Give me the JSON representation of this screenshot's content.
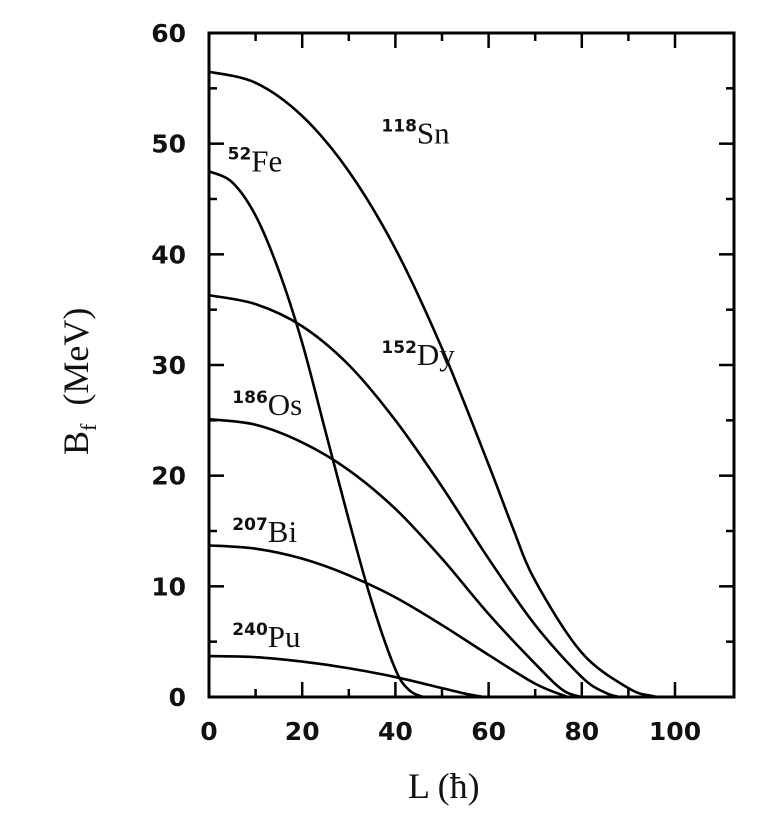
{
  "chart_data": {
    "type": "line",
    "title": "",
    "xlabel": "L (ħ)",
    "ylabel": "B_f (MeV)",
    "ylabel_main": "B",
    "ylabel_sub": "f",
    "ylabel_unit": "(MeV)",
    "xlim": [
      0,
      112
    ],
    "ylim": [
      0,
      60
    ],
    "xticks_major": [
      0,
      20,
      40,
      60,
      80,
      100
    ],
    "xticks_minor": [
      10,
      30,
      50,
      70,
      90
    ],
    "yticks_major": [
      0,
      10,
      20,
      30,
      40,
      50,
      60
    ],
    "yticks_minor": [
      5,
      15,
      25,
      35,
      45,
      55
    ],
    "xtick_labels": [
      "0",
      "20",
      "40",
      "60",
      "80",
      "100"
    ],
    "ytick_labels": [
      "0",
      "10",
      "20",
      "30",
      "40",
      "50",
      "60"
    ],
    "grid": false,
    "legend": "inline labels",
    "series": [
      {
        "name": "118Sn",
        "mass": "118",
        "element": "Sn",
        "x": [
          0,
          10,
          20,
          30,
          40,
          50,
          60,
          65,
          70,
          80,
          90,
          95,
          97
        ],
        "y": [
          56.5,
          55.5,
          52.5,
          47.5,
          40.5,
          31.5,
          21,
          15.5,
          10.5,
          4,
          0.8,
          0.1,
          0
        ]
      },
      {
        "name": "52Fe",
        "mass": "52",
        "element": "Fe",
        "x": [
          0,
          5,
          10,
          15,
          20,
          25,
          30,
          35,
          40,
          43,
          46
        ],
        "y": [
          47.5,
          46.5,
          43.5,
          38.5,
          32,
          24,
          16,
          8.5,
          2.5,
          0.6,
          0
        ]
      },
      {
        "name": "152Dy",
        "mass": "152",
        "element": "Dy",
        "x": [
          0,
          10,
          20,
          30,
          40,
          50,
          60,
          70,
          80,
          85,
          88
        ],
        "y": [
          36.3,
          35.5,
          33.5,
          30,
          25,
          19,
          12.5,
          6.5,
          1.8,
          0.4,
          0
        ]
      },
      {
        "name": "186Os",
        "mass": "186",
        "element": "Os",
        "x": [
          0,
          10,
          20,
          30,
          40,
          50,
          60,
          70,
          76,
          80
        ],
        "y": [
          25.1,
          24.6,
          23,
          20.5,
          17,
          12.5,
          7.5,
          3,
          0.6,
          0
        ]
      },
      {
        "name": "207Bi",
        "mass": "207",
        "element": "Bi",
        "x": [
          0,
          10,
          20,
          30,
          40,
          50,
          60,
          70,
          77
        ],
        "y": [
          13.7,
          13.4,
          12.5,
          11,
          9,
          6.5,
          3.8,
          1.2,
          0
        ]
      },
      {
        "name": "240Pu",
        "mass": "240",
        "element": "Pu",
        "x": [
          0,
          10,
          20,
          30,
          40,
          50,
          55,
          59
        ],
        "y": [
          3.7,
          3.6,
          3.2,
          2.6,
          1.8,
          0.8,
          0.3,
          0
        ]
      }
    ],
    "annotations": [
      {
        "text": "118Sn",
        "x": 37,
        "y": 50
      },
      {
        "text": "52Fe",
        "x": 4,
        "y": 47.5
      },
      {
        "text": "152Dy",
        "x": 37,
        "y": 30
      },
      {
        "text": "186Os",
        "x": 5,
        "y": 25.5
      },
      {
        "text": "207Bi",
        "x": 5,
        "y": 14
      },
      {
        "text": "240Pu",
        "x": 5,
        "y": 4.5
      }
    ]
  }
}
